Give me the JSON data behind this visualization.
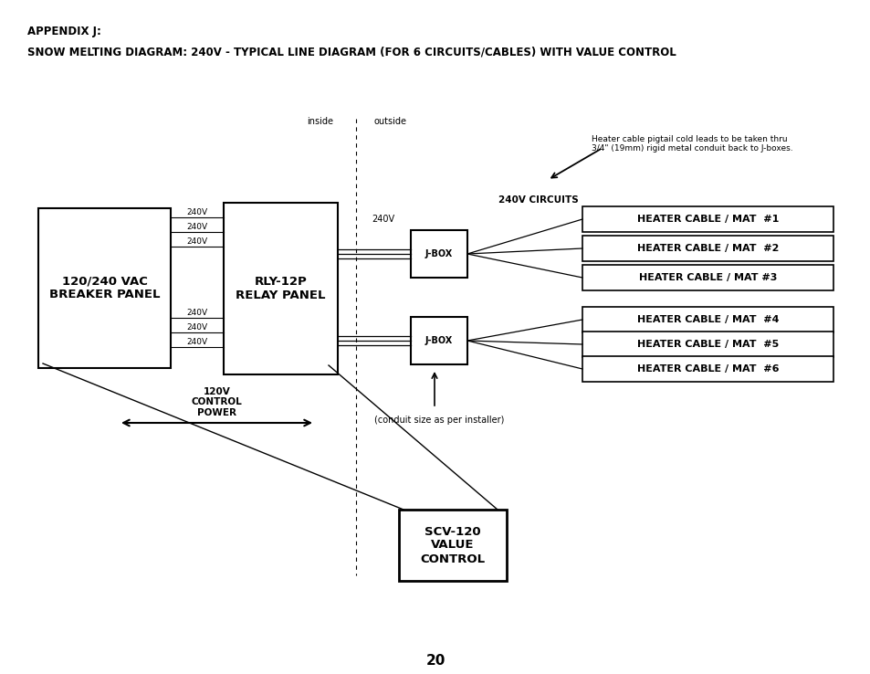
{
  "title_line1": "APPENDIX J:",
  "title_line2": "SNOW MELTING DIAGRAM: 240V - TYPICAL LINE DIAGRAM (FOR 6 CIRCUITS/CABLES) WITH VALUE CONTROL",
  "page_number": "20",
  "bg_color": "#ffffff",
  "breaker_panel_label": "120/240 VAC\nBREAKER PANEL",
  "relay_panel_label": "RLY-12P\nRELAY PANEL",
  "jbox1_label": "J-BOX",
  "jbox2_label": "J-BOX",
  "scv_label": "SCV-120\nVALUE\nCONTROL",
  "heater_cables": [
    "HEATER CABLE / MAT  #1",
    "HEATER CABLE / MAT  #2",
    "HEATER CABLE / MAT #3",
    "HEATER CABLE / MAT  #4",
    "HEATER CABLE / MAT  #5",
    "HEATER CABLE / MAT  #6"
  ],
  "inside_label": "inside",
  "outside_label": "outside",
  "circuits_label": "240V CIRCUITS",
  "240v_label": "240V",
  "240v_lines": [
    "240V",
    "240V",
    "240V"
  ],
  "control_power_label": "120V\nCONTROL\nPOWER",
  "conduit_note": "(conduit size as per installer)",
  "pigtail_note": "Heater cable pigtail cold leads to be taken thru\n3/4\" (19mm) rigid metal conduit back to J-boxes."
}
